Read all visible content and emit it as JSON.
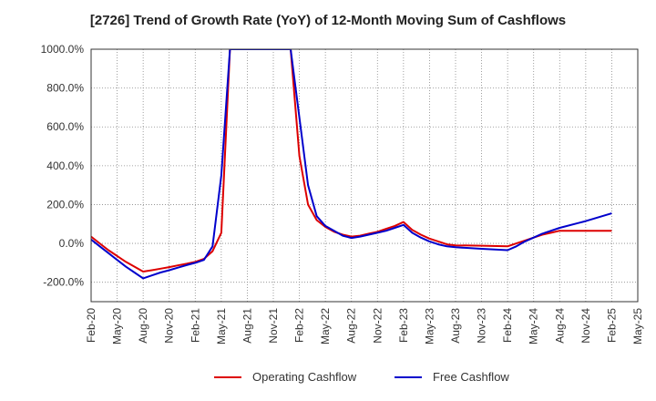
{
  "chart_data": {
    "type": "line",
    "title": "[2726]  Trend of Growth Rate (YoY) of 12-Month Moving Sum of Cashflows",
    "xlabel": "",
    "ylabel": "",
    "x_ticks": [
      "Feb-20",
      "May-20",
      "Aug-20",
      "Nov-20",
      "Feb-21",
      "May-21",
      "Aug-21",
      "Nov-21",
      "Feb-22",
      "May-22",
      "Aug-22",
      "Nov-22",
      "Feb-23",
      "May-23",
      "Aug-23",
      "Nov-23",
      "Feb-24",
      "May-24",
      "Aug-24",
      "Nov-24",
      "Feb-25",
      "May-25"
    ],
    "y_ticks": [
      "1000.0%",
      "800.0%",
      "600.0%",
      "400.0%",
      "200.0%",
      "0.0%",
      "-200.0%"
    ],
    "ylim": [
      -300,
      1000
    ],
    "grid": true,
    "legend_position": "bottom",
    "series": [
      {
        "name": "Operating Cashflow",
        "color": "#dd0000",
        "x": [
          "Feb-20",
          "Mar-20",
          "Apr-20",
          "May-20",
          "Jun-20",
          "Jul-20",
          "Aug-20",
          "Sep-20",
          "Oct-20",
          "Nov-20",
          "Dec-20",
          "Jan-21",
          "Feb-21",
          "Mar-21",
          "Apr-21",
          "May-21",
          "Jun-21",
          "Jan-22",
          "Feb-22",
          "Mar-22",
          "Apr-22",
          "May-22",
          "Jun-22",
          "Jul-22",
          "Aug-22",
          "Sep-22",
          "Oct-22",
          "Nov-22",
          "Dec-22",
          "Jan-23",
          "Feb-23",
          "Mar-23",
          "Apr-23",
          "May-23",
          "Jun-23",
          "Jul-23",
          "Aug-23",
          "Nov-23",
          "Feb-24",
          "Mar-24",
          "Apr-24",
          "May-24",
          "Jun-24",
          "Jul-24",
          "Aug-24",
          "Nov-24",
          "Feb-25"
        ],
        "values": [
          35,
          0,
          -35,
          -65,
          -95,
          -120,
          -145,
          -138,
          -130,
          -122,
          -113,
          -105,
          -95,
          -80,
          -40,
          55,
          1000,
          1000,
          450,
          200,
          120,
          85,
          60,
          45,
          35,
          40,
          50,
          60,
          75,
          90,
          110,
          70,
          45,
          25,
          10,
          -5,
          -10,
          -12,
          -15,
          0,
          15,
          30,
          45,
          55,
          65,
          65,
          65
        ]
      },
      {
        "name": "Free Cashflow",
        "color": "#0000cc",
        "x": [
          "Feb-20",
          "Mar-20",
          "Apr-20",
          "May-20",
          "Jun-20",
          "Jul-20",
          "Aug-20",
          "Sep-20",
          "Oct-20",
          "Nov-20",
          "Dec-20",
          "Jan-21",
          "Feb-21",
          "Mar-21",
          "Apr-21",
          "May-21",
          "Jun-21",
          "Jan-22",
          "Mar-22",
          "Apr-22",
          "May-22",
          "Jun-22",
          "Jul-22",
          "Aug-22",
          "Sep-22",
          "Oct-22",
          "Nov-22",
          "Dec-22",
          "Jan-23",
          "Feb-23",
          "Mar-23",
          "Apr-23",
          "May-23",
          "Jun-23",
          "Jul-23",
          "Aug-23",
          "Nov-23",
          "Feb-24",
          "Mar-24",
          "Apr-24",
          "May-24",
          "Jun-24",
          "Jul-24",
          "Aug-24",
          "Nov-24",
          "Feb-25"
        ],
        "values": [
          20,
          -15,
          -50,
          -85,
          -120,
          -150,
          -180,
          -165,
          -150,
          -138,
          -125,
          -112,
          -100,
          -85,
          -15,
          350,
          1000,
          1000,
          300,
          140,
          90,
          65,
          40,
          28,
          35,
          45,
          55,
          65,
          80,
          95,
          55,
          30,
          10,
          -5,
          -15,
          -20,
          -28,
          -35,
          -15,
          10,
          30,
          50,
          65,
          80,
          115,
          155
        ]
      }
    ]
  }
}
